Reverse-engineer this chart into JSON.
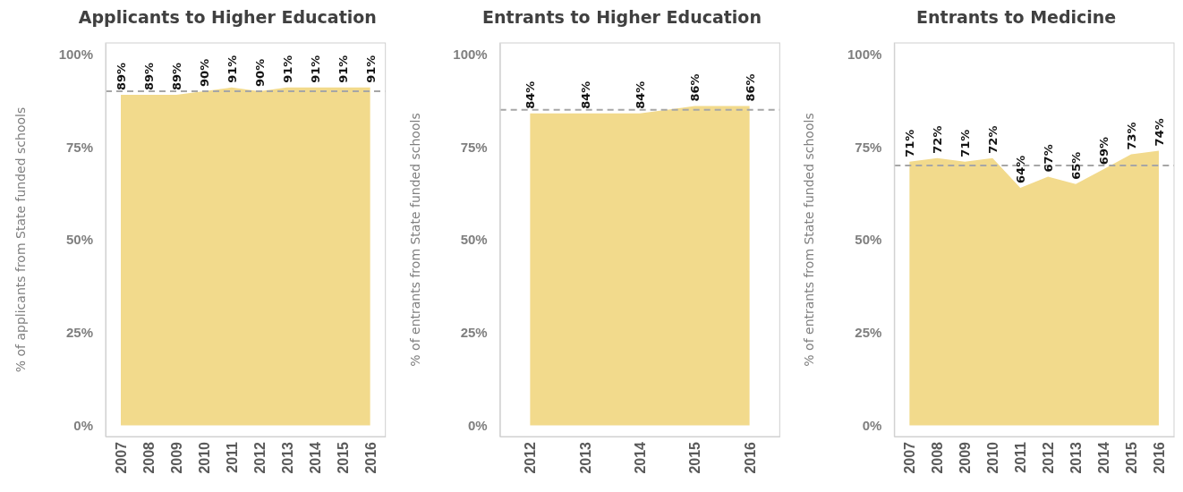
{
  "chart_data": [
    {
      "type": "area",
      "title": "Applicants to Higher Education",
      "ylabel": "% of applicants from State funded schools",
      "categories": [
        "2007",
        "2008",
        "2009",
        "2010",
        "2011",
        "2012",
        "2013",
        "2014",
        "2015",
        "2016"
      ],
      "values": [
        89,
        89,
        89,
        90,
        91,
        90,
        91,
        91,
        91,
        91
      ],
      "color": "#f2da8c",
      "value_labels": [
        "89%",
        "89%",
        "89%",
        "90%",
        "91%",
        "90%",
        "91%",
        "91%",
        "91%",
        "91%"
      ],
      "ylim": [
        -3,
        103
      ],
      "yticks": [
        {
          "value": 0,
          "label": "0%"
        },
        {
          "value": 25,
          "label": "25%"
        },
        {
          "value": 50,
          "label": "50%"
        },
        {
          "value": 75,
          "label": "75%"
        },
        {
          "value": 100,
          "label": "100%"
        }
      ],
      "ref_lines": [
        {
          "axis": "y",
          "value": 90,
          "color": "#a6a6a6",
          "line_style": "dashed"
        }
      ]
    },
    {
      "type": "area",
      "title": "Entrants to Higher Education",
      "ylabel": "% of entrants from State funded schools",
      "categories": [
        "2012",
        "2013",
        "2014",
        "2015",
        "2016"
      ],
      "values": [
        84,
        84,
        84,
        86,
        86
      ],
      "color": "#f2da8c",
      "value_labels": [
        "84%",
        "84%",
        "84%",
        "86%",
        "86%"
      ],
      "ylim": [
        -3,
        103
      ],
      "yticks": [
        {
          "value": 0,
          "label": "0%"
        },
        {
          "value": 25,
          "label": "25%"
        },
        {
          "value": 50,
          "label": "50%"
        },
        {
          "value": 75,
          "label": "75%"
        },
        {
          "value": 100,
          "label": "100%"
        }
      ],
      "ref_lines": [
        {
          "axis": "y",
          "value": 85,
          "color": "#a6a6a6",
          "line_style": "dashed"
        }
      ]
    },
    {
      "type": "area",
      "title": "Entrants to Medicine",
      "ylabel": "% of entrants from State funded schools",
      "categories": [
        "2007",
        "2008",
        "2009",
        "2010",
        "2011",
        "2012",
        "2013",
        "2014",
        "2015",
        "2016"
      ],
      "values": [
        71,
        72,
        71,
        72,
        64,
        67,
        65,
        69,
        73,
        74
      ],
      "color": "#f2da8c",
      "value_labels": [
        "71%",
        "72%",
        "71%",
        "72%",
        "64%",
        "67%",
        "65%",
        "69%",
        "73%",
        "74%"
      ],
      "ylim": [
        -3,
        103
      ],
      "yticks": [
        {
          "value": 0,
          "label": "0%"
        },
        {
          "value": 25,
          "label": "25%"
        },
        {
          "value": 50,
          "label": "50%"
        },
        {
          "value": 75,
          "label": "75%"
        },
        {
          "value": 100,
          "label": "100%"
        }
      ],
      "ref_lines": [
        {
          "axis": "y",
          "value": 70,
          "color": "#a6a6a6",
          "line_style": "dashed"
        }
      ]
    }
  ]
}
